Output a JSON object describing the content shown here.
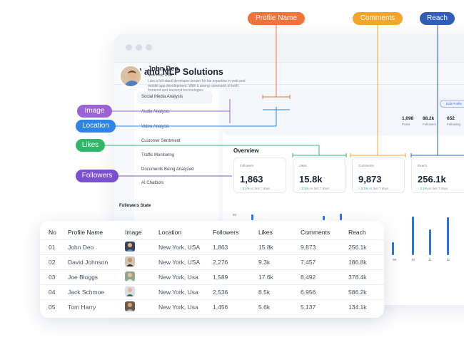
{
  "app": {
    "title": "AI and NLP Solutions"
  },
  "sidebar": {
    "items": [
      {
        "label": "Social Media Analysis",
        "active": true
      },
      {
        "label": "Audio Analysis"
      },
      {
        "label": "Video Analysis"
      },
      {
        "label": "Customer Sentiment"
      },
      {
        "label": "Traffic Monitoring"
      },
      {
        "label": "Documents Being Analyzed"
      },
      {
        "label": "AI Chatbots"
      }
    ]
  },
  "profile": {
    "name": "John Deo",
    "location": "New York, USA",
    "bio": "I am a full-stack developer known for his expertise in web and mobile app development. With a strong command of both frontend and backend technologies",
    "edit_label": "Edit Profile",
    "stats": [
      {
        "value": "1,098",
        "label": "Posts"
      },
      {
        "value": "88.2k",
        "label": "Followers"
      },
      {
        "value": "652",
        "label": "Following"
      }
    ]
  },
  "overview": {
    "title": "Overview",
    "cards": [
      {
        "label": "Followers",
        "value": "1,863",
        "trend": "↑ 2.1%",
        "trend_suffix": "vs last 7 days"
      },
      {
        "label": "Likes",
        "value": "15.8k",
        "trend": "↑ 2.1%",
        "trend_suffix": "vs last 7 days"
      },
      {
        "label": "Comments",
        "value": "9,873",
        "trend": "↑ 2.1%",
        "trend_suffix": "vs last 7 days"
      },
      {
        "label": "Reach",
        "value": "256.1k",
        "trend": "↑ 2.1%",
        "trend_suffix": "vs last 7 days"
      }
    ]
  },
  "chart_data": {
    "type": "bar",
    "title": "Followers State",
    "y_tick_visible": "60",
    "visible_x_ticks": [
      "09",
      "10",
      "11",
      "12"
    ]
  },
  "callouts": {
    "profile_name": "Profile Name",
    "comments": "Comments",
    "reach": "Reach",
    "image": "Image",
    "location": "Location",
    "likes": "Likes",
    "followers": "Followers"
  },
  "colors": {
    "orange": "#f0743a",
    "amber": "#f4a52a",
    "navy": "#2f5db8",
    "purple": "#9a63d6",
    "blue": "#2f83e6",
    "green": "#2fb86a",
    "violet": "#7a4fd0",
    "bar": "#2f74e8"
  },
  "table": {
    "headers": [
      "No",
      "Profile Name",
      "Image",
      "Location",
      "Followers",
      "Likes",
      "Comments",
      "Reach"
    ],
    "rows": [
      {
        "no": "01",
        "name": "John Deo",
        "location": "New York, USA",
        "followers": "1,863",
        "likes": "15.8k",
        "comments": "9,873",
        "reach": "256.1k"
      },
      {
        "no": "02",
        "name": "David Johnson",
        "location": "New York, USA",
        "followers": "2,276",
        "likes": "9.3k",
        "comments": "7,457",
        "reach": "186.8k"
      },
      {
        "no": "03",
        "name": "Joe Bloggs",
        "location": "New York, Usa",
        "followers": "1,589",
        "likes": "17.6k",
        "comments": "8,492",
        "reach": "378.4k"
      },
      {
        "no": "04",
        "name": "Jack Schmoe",
        "location": "New York, Usa",
        "followers": "2,536",
        "likes": "8.5k",
        "comments": "6,956",
        "reach": "586.2k"
      },
      {
        "no": "05",
        "name": "Tom Harry",
        "location": "New York, Usa",
        "followers": "1,456",
        "likes": "5.6k",
        "comments": "5,137",
        "reach": "134.1k"
      }
    ]
  }
}
